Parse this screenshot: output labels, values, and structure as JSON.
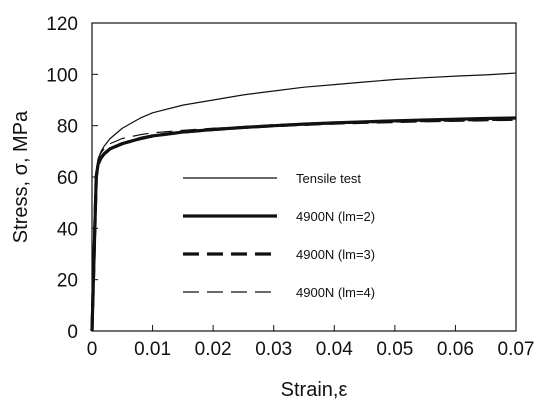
{
  "chart_data": {
    "type": "line",
    "xlabel": "Strain,ε",
    "ylabel": "Stress, σ, MPa",
    "xlim": [
      0,
      0.07
    ],
    "ylim": [
      0,
      120
    ],
    "x_ticks": [
      0,
      0.01,
      0.02,
      0.03,
      0.04,
      0.05,
      0.06,
      0.07
    ],
    "x_tick_labels": [
      "0",
      "0.01",
      "0.02",
      "0.03",
      "0.04",
      "0.05",
      "0.06",
      "0.07"
    ],
    "y_ticks": [
      0,
      20,
      40,
      60,
      80,
      100,
      120
    ],
    "y_tick_labels": [
      "0",
      "20",
      "40",
      "60",
      "80",
      "100",
      "120"
    ],
    "grid": false,
    "legend_position": "center",
    "series": [
      {
        "name": "Tensile test",
        "style": "solid-thin",
        "x": [
          0,
          0.0007,
          0.001,
          0.0015,
          0.002,
          0.003,
          0.005,
          0.008,
          0.01,
          0.015,
          0.02,
          0.025,
          0.03,
          0.035,
          0.04,
          0.045,
          0.05,
          0.055,
          0.06,
          0.065,
          0.07
        ],
        "y": [
          0,
          62,
          67,
          70,
          72,
          75,
          79,
          83,
          85,
          88,
          90,
          92,
          93.5,
          95,
          96,
          97,
          98,
          98.7,
          99.3,
          99.8,
          100.5
        ]
      },
      {
        "name": "4900N (lm=2)",
        "style": "solid-thick",
        "x": [
          0,
          0.0007,
          0.001,
          0.0015,
          0.002,
          0.003,
          0.005,
          0.008,
          0.01,
          0.015,
          0.02,
          0.025,
          0.03,
          0.035,
          0.04,
          0.045,
          0.05,
          0.055,
          0.06,
          0.065,
          0.07
        ],
        "y": [
          0,
          60,
          65,
          67.5,
          69,
          71,
          73,
          75,
          76,
          77.5,
          78.5,
          79.3,
          80,
          80.6,
          81.1,
          81.5,
          81.9,
          82.2,
          82.5,
          82.8,
          83
        ]
      },
      {
        "name": "4900N (lm=3)",
        "style": "dash-thick",
        "x": [
          0,
          0.0007,
          0.001,
          0.0015,
          0.002,
          0.003,
          0.005,
          0.008,
          0.01,
          0.015,
          0.02,
          0.025,
          0.03,
          0.035,
          0.04,
          0.045,
          0.05,
          0.055,
          0.06,
          0.065,
          0.07
        ],
        "y": [
          0,
          60,
          65,
          67.5,
          69,
          71,
          73,
          75,
          76,
          77.5,
          78.5,
          79.3,
          80,
          80.5,
          81,
          81.3,
          81.6,
          81.9,
          82.1,
          82.3,
          82.5
        ]
      },
      {
        "name": "4900N (lm=4)",
        "style": "dash-thin",
        "x": [
          0,
          0.0007,
          0.001,
          0.0015,
          0.002,
          0.003,
          0.005,
          0.008,
          0.01,
          0.015,
          0.02,
          0.025,
          0.03,
          0.035,
          0.04,
          0.045,
          0.05,
          0.055,
          0.06,
          0.065,
          0.07
        ],
        "y": [
          0,
          62,
          67,
          69.5,
          71,
          73,
          75,
          76.5,
          77.2,
          78.2,
          79,
          79.5,
          80,
          80.4,
          80.8,
          81.1,
          81.4,
          81.6,
          81.8,
          82,
          82.2
        ]
      }
    ]
  }
}
